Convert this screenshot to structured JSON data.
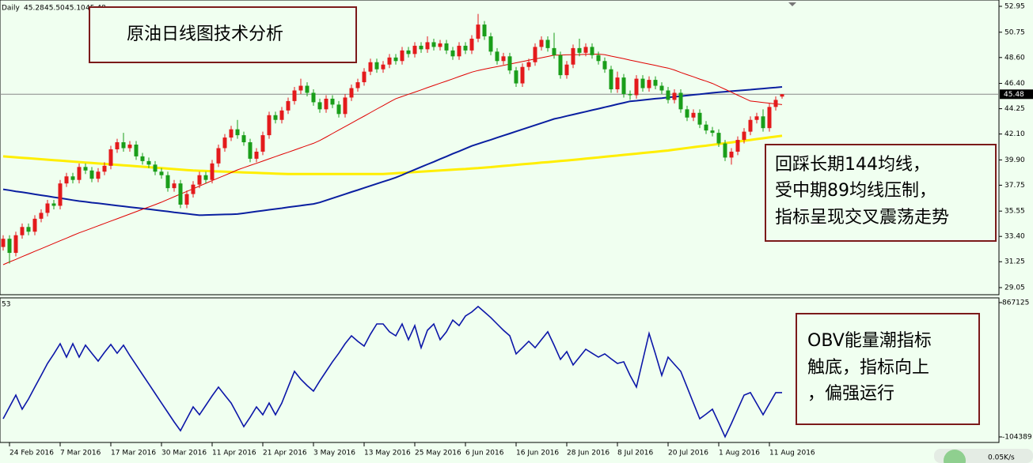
{
  "chart_data": {
    "type": "candlestick",
    "symbol": "Daily",
    "last_bar_labels": [
      "45.28",
      "45.50",
      "45.10",
      "45.48"
    ],
    "categories": [
      null,
      "24 Feb 2016",
      null,
      null,
      null,
      null,
      null,
      null,
      null,
      "7 Mar 2016",
      null,
      null,
      null,
      null,
      null,
      null,
      null,
      "17 Mar 2016",
      null,
      null,
      null,
      null,
      null,
      null,
      null,
      "30 Mar 2016",
      null,
      null,
      null,
      null,
      null,
      null,
      null,
      "11 Apr 2016",
      null,
      null,
      null,
      null,
      null,
      null,
      null,
      "21 Apr 2016",
      null,
      null,
      null,
      null,
      null,
      null,
      null,
      "3 May 2016",
      null,
      null,
      null,
      null,
      null,
      null,
      null,
      "13 May 2016",
      null,
      null,
      null,
      null,
      null,
      null,
      null,
      "25 May 2016",
      null,
      null,
      null,
      null,
      null,
      null,
      null,
      "6 Jun 2016",
      null,
      null,
      null,
      null,
      null,
      null,
      null,
      "16 Jun 2016",
      null,
      null,
      null,
      null,
      null,
      null,
      null,
      "28 Jun 2016",
      null,
      null,
      null,
      null,
      null,
      null,
      null,
      "8 Jul 2016",
      null,
      null,
      null,
      null,
      null,
      null,
      null,
      "20 Jul 2016",
      null,
      null,
      null,
      null,
      null,
      null,
      null,
      "1 Aug 2016",
      null,
      null,
      null,
      null,
      null,
      null,
      null,
      "11 Aug 2016",
      null,
      null
    ],
    "open": [
      32.5,
      33.2,
      32.0,
      33.5,
      34.2,
      33.8,
      34.9,
      35.4,
      36.2,
      36.0,
      37.9,
      38.5,
      38.2,
      39.3,
      39.0,
      38.3,
      38.9,
      39.4,
      40.8,
      41.4,
      40.9,
      41.2,
      40.2,
      39.8,
      39.5,
      38.9,
      38.6,
      37.5,
      37.9,
      36.1,
      37.0,
      37.8,
      38.6,
      38.2,
      39.6,
      40.9,
      41.8,
      42.5,
      42.0,
      41.4,
      40.0,
      40.6,
      42.0,
      43.7,
      43.3,
      44.1,
      44.9,
      45.8,
      46.2,
      45.6,
      44.8,
      44.2,
      45.1,
      44.6,
      43.8,
      45.2,
      46.0,
      46.5,
      47.4,
      48.2,
      47.6,
      48.0,
      48.6,
      48.3,
      49.2,
      48.9,
      49.6,
      49.3,
      49.9,
      49.5,
      49.8,
      49.2,
      48.7,
      49.6,
      49.2,
      50.2,
      51.4,
      50.4,
      49.1,
      48.3,
      48.7,
      47.5,
      46.4,
      47.8,
      48.2,
      49.5,
      50.1,
      49.4,
      48.8,
      47.1,
      48.0,
      49.4,
      49.0,
      49.5,
      48.8,
      48.3,
      47.6,
      45.9,
      46.9,
      45.5,
      45.4,
      46.8,
      46.0,
      46.7,
      46.2,
      45.8,
      45.0,
      45.6,
      44.2,
      43.5,
      43.9,
      42.9,
      42.4,
      42.2,
      41.3,
      40.1,
      40.6,
      41.6,
      42.3,
      43.3,
      43.6,
      42.6,
      44.4,
      45.28
    ],
    "high": [
      33.5,
      33.5,
      33.8,
      34.5,
      34.5,
      35.2,
      35.7,
      36.5,
      36.5,
      38.2,
      38.8,
      38.8,
      39.6,
      39.6,
      39.3,
      39.2,
      39.7,
      41.1,
      41.7,
      42.2,
      41.5,
      41.5,
      40.5,
      40.1,
      39.8,
      39.2,
      38.9,
      38.2,
      38.2,
      37.3,
      38.1,
      38.9,
      38.9,
      39.9,
      41.2,
      42.1,
      42.8,
      43.3,
      42.3,
      41.7,
      40.9,
      42.3,
      44.0,
      44.0,
      44.4,
      45.2,
      46.1,
      46.8,
      46.5,
      45.9,
      45.1,
      45.4,
      45.4,
      44.9,
      45.5,
      46.3,
      46.8,
      47.7,
      48.5,
      48.5,
      48.3,
      48.9,
      48.9,
      49.5,
      49.5,
      49.9,
      49.9,
      50.4,
      50.2,
      50.1,
      50.1,
      49.5,
      49.9,
      49.9,
      50.5,
      52.3,
      51.7,
      50.7,
      49.4,
      49.0,
      49.0,
      47.8,
      48.1,
      48.5,
      49.8,
      50.4,
      50.4,
      50.7,
      49.1,
      48.3,
      49.7,
      50.2,
      49.8,
      49.8,
      49.1,
      48.6,
      47.9,
      47.4,
      47.2,
      45.8,
      47.1,
      47.1,
      47.0,
      47.0,
      46.5,
      46.1,
      45.9,
      45.9,
      44.5,
      44.2,
      44.2,
      43.2,
      42.7,
      42.5,
      41.6,
      40.9,
      41.9,
      42.6,
      43.6,
      43.9,
      44.2,
      44.7,
      45.3,
      45.5
    ],
    "low": [
      32.2,
      31.1,
      31.7,
      33.2,
      33.5,
      33.5,
      34.6,
      35.1,
      35.7,
      35.7,
      37.6,
      37.9,
      37.9,
      38.7,
      38.0,
      38.0,
      38.6,
      39.1,
      40.5,
      40.6,
      40.6,
      39.9,
      39.5,
      39.2,
      38.6,
      38.3,
      37.2,
      37.2,
      35.8,
      35.8,
      36.7,
      37.5,
      37.9,
      37.9,
      39.3,
      40.6,
      41.5,
      41.7,
      41.1,
      39.7,
      39.7,
      40.3,
      41.7,
      43.0,
      43.0,
      43.8,
      44.6,
      45.5,
      45.3,
      44.5,
      43.9,
      43.9,
      44.3,
      43.5,
      43.5,
      44.9,
      45.7,
      46.2,
      47.1,
      47.3,
      47.3,
      47.7,
      48.0,
      48.0,
      48.6,
      48.6,
      49.0,
      49.0,
      49.2,
      49.2,
      48.9,
      48.4,
      48.4,
      48.9,
      48.9,
      49.9,
      50.1,
      48.8,
      48.0,
      48.0,
      47.2,
      46.1,
      46.1,
      47.5,
      47.9,
      49.2,
      49.1,
      48.5,
      46.8,
      46.8,
      47.7,
      48.7,
      48.7,
      48.5,
      48.0,
      47.3,
      45.6,
      45.6,
      45.2,
      45.0,
      45.1,
      45.7,
      45.7,
      45.9,
      45.5,
      44.7,
      44.7,
      43.9,
      43.2,
      43.2,
      42.6,
      42.1,
      41.9,
      41.0,
      39.8,
      39.5,
      40.3,
      41.3,
      42.0,
      43.0,
      42.3,
      42.3,
      44.1,
      45.1
    ],
    "close": [
      33.2,
      32.0,
      33.5,
      34.2,
      33.8,
      34.9,
      35.4,
      36.2,
      36.0,
      37.9,
      38.5,
      38.2,
      39.3,
      39.0,
      38.3,
      38.9,
      39.4,
      40.8,
      41.4,
      40.9,
      41.2,
      40.2,
      39.8,
      39.5,
      38.9,
      38.6,
      37.5,
      37.9,
      36.1,
      37.0,
      37.8,
      38.6,
      38.2,
      39.6,
      40.9,
      41.8,
      42.5,
      42.0,
      41.4,
      40.0,
      40.6,
      42.0,
      43.7,
      43.3,
      44.1,
      44.9,
      45.8,
      46.2,
      45.6,
      44.8,
      44.2,
      45.1,
      44.6,
      43.8,
      45.2,
      46.0,
      46.5,
      47.4,
      48.2,
      47.6,
      48.0,
      48.6,
      48.3,
      49.2,
      48.9,
      49.6,
      49.3,
      49.9,
      49.5,
      49.8,
      49.2,
      48.7,
      49.6,
      49.2,
      50.2,
      51.4,
      50.4,
      49.1,
      48.3,
      48.7,
      47.5,
      46.4,
      47.8,
      48.2,
      49.5,
      50.1,
      49.4,
      48.8,
      47.1,
      48.0,
      49.4,
      49.0,
      49.5,
      48.8,
      48.3,
      47.6,
      45.9,
      46.9,
      45.5,
      45.4,
      46.8,
      46.0,
      46.7,
      46.2,
      45.8,
      45.0,
      45.6,
      44.2,
      43.5,
      43.9,
      42.9,
      42.4,
      42.2,
      41.3,
      40.1,
      40.6,
      41.6,
      42.3,
      43.3,
      43.6,
      42.6,
      44.4,
      45.0,
      45.48
    ],
    "up_color": "#e31a1c",
    "down_color": "#1a9e1a",
    "series": [
      {
        "color": "#ffee00",
        "values": [
          40.2,
          40.16,
          40.12,
          40.08,
          40.04,
          40.0,
          39.96,
          39.92,
          39.88,
          39.84,
          39.8,
          39.76,
          39.72,
          39.68,
          39.64,
          39.6,
          39.56,
          39.52,
          39.48,
          39.44,
          39.4,
          39.36,
          39.32,
          39.28,
          39.24,
          39.2,
          39.16,
          39.12,
          39.08,
          39.04,
          39.0,
          38.98,
          38.96,
          38.94,
          38.92,
          38.9,
          38.88,
          38.86,
          38.84,
          38.82,
          38.8,
          38.78,
          38.76,
          38.74,
          38.72,
          38.7,
          38.7,
          38.7,
          38.7,
          38.7,
          38.7,
          38.7,
          38.7,
          38.7,
          38.7,
          38.7,
          38.7,
          38.7,
          38.7,
          38.7,
          38.7,
          38.73,
          38.77,
          38.8,
          38.83,
          38.87,
          38.9,
          38.93,
          38.97,
          39.0,
          39.03,
          39.07,
          39.1,
          39.13,
          39.17,
          39.2,
          39.25,
          39.29,
          39.34,
          39.39,
          39.43,
          39.48,
          39.53,
          39.57,
          39.62,
          39.67,
          39.71,
          39.76,
          39.81,
          39.85,
          39.9,
          39.95,
          40.01,
          40.06,
          40.11,
          40.17,
          40.22,
          40.27,
          40.33,
          40.38,
          40.43,
          40.49,
          40.54,
          40.59,
          40.65,
          40.7,
          40.77,
          40.84,
          40.91,
          40.98,
          41.05,
          41.11,
          41.18,
          41.25,
          41.32,
          41.39,
          41.46,
          41.53,
          41.6,
          41.67,
          41.74,
          41.81,
          41.88,
          41.95
        ]
      },
      {
        "color": "#0a1fa0",
        "values": [
          37.4,
          37.32,
          37.23,
          37.15,
          37.07,
          36.98,
          36.9,
          36.82,
          36.73,
          36.65,
          36.57,
          36.48,
          36.4,
          36.34,
          36.27,
          36.21,
          36.15,
          36.08,
          36.02,
          35.96,
          35.89,
          35.83,
          35.77,
          35.71,
          35.64,
          35.58,
          35.52,
          35.45,
          35.39,
          35.33,
          35.26,
          35.2,
          35.22,
          35.23,
          35.25,
          35.27,
          35.28,
          35.3,
          35.37,
          35.44,
          35.52,
          35.59,
          35.66,
          35.73,
          35.8,
          35.88,
          35.95,
          36.02,
          36.09,
          36.16,
          36.29,
          36.46,
          36.64,
          36.82,
          36.99,
          37.17,
          37.34,
          37.52,
          37.7,
          37.87,
          38.05,
          38.22,
          38.4,
          38.62,
          38.85,
          39.07,
          39.3,
          39.52,
          39.74,
          39.97,
          40.19,
          40.42,
          40.64,
          40.86,
          41.09,
          41.26,
          41.44,
          41.61,
          41.79,
          41.97,
          42.14,
          42.32,
          42.5,
          42.67,
          42.85,
          43.03,
          43.2,
          43.38,
          43.5,
          43.63,
          43.75,
          43.88,
          44.0,
          44.13,
          44.25,
          44.38,
          44.5,
          44.63,
          44.75,
          44.88,
          44.93,
          44.99,
          45.04,
          45.1,
          45.15,
          45.21,
          45.26,
          45.32,
          45.37,
          45.43,
          45.48,
          45.54,
          45.6,
          45.65,
          45.69,
          45.74,
          45.78,
          45.83,
          45.87,
          45.92,
          45.96,
          46.01,
          46.05,
          46.1
        ]
      },
      {
        "color": "#e00000",
        "values": [
          31.0,
          31.23,
          31.45,
          31.68,
          31.9,
          32.13,
          32.35,
          32.58,
          32.8,
          33.03,
          33.25,
          33.48,
          33.7,
          33.9,
          34.1,
          34.3,
          34.5,
          34.7,
          34.9,
          35.1,
          35.3,
          35.5,
          35.7,
          35.9,
          36.1,
          36.31,
          36.54,
          36.77,
          37.0,
          37.22,
          37.45,
          37.68,
          37.91,
          38.14,
          38.37,
          38.59,
          38.82,
          39.05,
          39.24,
          39.43,
          39.61,
          39.8,
          39.99,
          40.18,
          40.37,
          40.55,
          40.74,
          40.93,
          41.12,
          41.31,
          41.55,
          41.84,
          42.14,
          42.44,
          42.73,
          43.03,
          43.33,
          43.62,
          43.92,
          44.22,
          44.51,
          44.81,
          45.1,
          45.29,
          45.48,
          45.66,
          45.85,
          46.04,
          46.23,
          46.42,
          46.6,
          46.79,
          46.98,
          47.17,
          47.36,
          47.5,
          47.61,
          47.72,
          47.82,
          47.93,
          48.04,
          48.15,
          48.26,
          48.37,
          48.48,
          48.58,
          48.69,
          48.8,
          48.81,
          48.83,
          48.84,
          48.85,
          48.87,
          48.88,
          48.89,
          48.84,
          48.72,
          48.61,
          48.5,
          48.38,
          48.27,
          48.15,
          48.04,
          47.93,
          47.81,
          47.7,
          47.54,
          47.33,
          47.14,
          46.96,
          46.77,
          46.59,
          46.4,
          46.15,
          45.9,
          45.65,
          45.4,
          45.15,
          44.9,
          44.84,
          44.78,
          44.72,
          44.66,
          44.6
        ]
      }
    ],
    "ylim": [
      29.05,
      52.95
    ],
    "yticks": [
      52.95,
      50.75,
      {
        "value": 48.6,
        "label": "48.60"
      },
      {
        "value": 46.4,
        "label": "46.40"
      },
      44.25,
      {
        "value": 42.1,
        "label": "42.10"
      },
      {
        "value": 39.9,
        "label": "39.90"
      },
      37.75,
      35.55,
      {
        "value": 33.4,
        "label": "33.40"
      },
      31.25,
      29.05
    ],
    "indicator": {
      "label": "53",
      "color": "#0b16a8",
      "values": [
        27000,
        113000,
        198000,
        96000,
        170000,
        256000,
        341000,
        427000,
        496000,
        570000,
        473000,
        570000,
        473000,
        559000,
        501000,
        444000,
        507000,
        564000,
        501000,
        559000,
        484000,
        416000,
        347000,
        279000,
        210000,
        141000,
        73000,
        4000,
        -59000,
        27000,
        113000,
        56000,
        124000,
        193000,
        256000,
        198000,
        141000,
        56000,
        -30000,
        38000,
        113000,
        56000,
        141000,
        56000,
        141000,
        256000,
        370000,
        313000,
        267000,
        227000,
        301000,
        370000,
        439000,
        501000,
        570000,
        627000,
        587000,
        553000,
        639000,
        713000,
        713000,
        656000,
        627000,
        713000,
        599000,
        701000,
        541000,
        667000,
        713000,
        599000,
        656000,
        741000,
        701000,
        770000,
        799000,
        839000,
        799000,
        759000,
        713000,
        667000,
        627000,
        496000,
        541000,
        587000,
        541000,
        599000,
        656000,
        559000,
        456000,
        513000,
        416000,
        473000,
        530000,
        501000,
        473000,
        496000,
        461000,
        427000,
        439000,
        341000,
        256000,
        450000,
        644000,
        496000,
        341000,
        473000,
        421000,
        370000,
        256000,
        141000,
        27000,
        61000,
        96000,
        -2000,
        -104000,
        -7000,
        96000,
        198000,
        216000,
        136000,
        56000,
        136000,
        216000,
        216000
      ],
      "y2lim": [
        -104389,
        867125
      ],
      "y2ticks": [
        867125,
        -104389
      ]
    },
    "annotations": {
      "title": "原油日线图技术分析",
      "ma_note": [
        "回踩长期144均线，",
        "受中期89均线压制，",
        "指标呈现交叉震荡走势"
      ],
      "obv_note": [
        "OBV能量潮指标",
        "触底，指标向上",
        "，偏强运行"
      ]
    },
    "status": "0.05K/s"
  }
}
